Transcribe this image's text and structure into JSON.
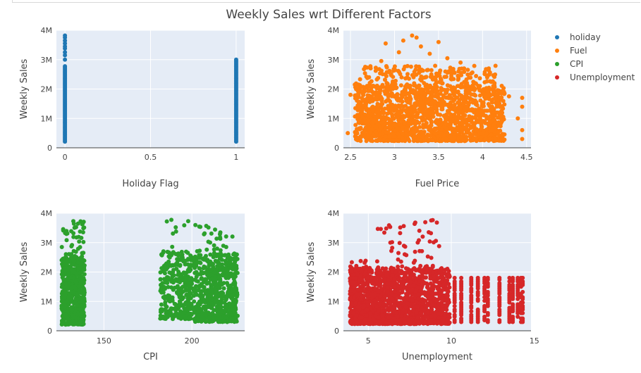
{
  "title": "Weekly Sales wrt Different Factors",
  "colors": {
    "holiday": "#1f77b4",
    "Fuel": "#ff7f0e",
    "CPI": "#2ca02c",
    "Unemployment": "#d62728",
    "plot_bg": "#e5ecf6",
    "grid": "#ffffff",
    "text": "#444444"
  },
  "legend": [
    {
      "name": "holiday",
      "color": "#1f77b4"
    },
    {
      "name": "Fuel",
      "color": "#ff7f0e"
    },
    {
      "name": "CPI",
      "color": "#2ca02c"
    },
    {
      "name": "Unemployment",
      "color": "#d62728"
    }
  ],
  "chart_data": [
    {
      "type": "scatter",
      "series_name": "holiday",
      "title": "",
      "xlabel": "Holiday Flag",
      "ylabel": "Weekly Sales",
      "xlim": [
        -0.05,
        1.05
      ],
      "ylim": [
        0,
        4000000
      ],
      "xticks": [
        0,
        0.5,
        1
      ],
      "xtick_labels": [
        "0",
        "0.5",
        "1"
      ],
      "yticks": [
        0,
        1000000,
        2000000,
        3000000,
        4000000
      ],
      "ytick_labels": [
        "0",
        "1M",
        "2M",
        "3M",
        "4M"
      ],
      "y_range_data": [
        210000,
        3820000
      ],
      "groups": [
        {
          "x": 0,
          "y_min": 210000,
          "y_max": 2800000,
          "outliers": [
            3000000,
            3150000,
            3250000,
            3380000,
            3450000,
            3550000,
            3650000,
            3750000,
            3820000
          ]
        },
        {
          "x": 1,
          "y_min": 210000,
          "y_max": 3000000,
          "outliers": []
        }
      ]
    },
    {
      "type": "scatter",
      "series_name": "Fuel",
      "title": "",
      "xlabel": "Fuel Price",
      "ylabel": "Weekly Sales",
      "xlim": [
        2.42,
        4.55
      ],
      "ylim": [
        0,
        4000000
      ],
      "xticks": [
        2.5,
        3,
        3.5,
        4,
        4.5
      ],
      "xtick_labels": [
        "2.5",
        "3",
        "3.5",
        "4",
        "4.5"
      ],
      "yticks": [
        0,
        1000000,
        2000000,
        3000000,
        4000000
      ],
      "ytick_labels": [
        "0",
        "1M",
        "2M",
        "3M",
        "4M"
      ],
      "x_range_data": [
        2.47,
        4.47
      ],
      "y_range_data": [
        210000,
        3820000
      ],
      "outliers": [
        [
          3.2,
          3820000
        ],
        [
          3.25,
          3750000
        ],
        [
          3.1,
          3650000
        ],
        [
          2.9,
          3550000
        ],
        [
          3.5,
          3600000
        ],
        [
          3.3,
          3450000
        ],
        [
          3.05,
          3250000
        ],
        [
          3.4,
          3200000
        ],
        [
          2.85,
          2950000
        ],
        [
          3.6,
          3050000
        ],
        [
          3.75,
          2900000
        ],
        [
          4.3,
          1750000
        ],
        [
          4.45,
          1700000
        ],
        [
          4.45,
          1400000
        ],
        [
          4.4,
          1000000
        ],
        [
          4.45,
          600000
        ],
        [
          4.45,
          300000
        ],
        [
          2.55,
          2150000
        ],
        [
          2.5,
          1800000
        ],
        [
          2.47,
          500000
        ]
      ]
    },
    {
      "type": "scatter",
      "series_name": "CPI",
      "title": "",
      "xlabel": "CPI",
      "ylabel": "Weekly Sales",
      "xlim": [
        123,
        230
      ],
      "ylim": [
        0,
        4000000
      ],
      "xticks": [
        150,
        200
      ],
      "xtick_labels": [
        "150",
        "200"
      ],
      "yticks": [
        0,
        1000000,
        2000000,
        3000000,
        4000000
      ],
      "ytick_labels": [
        "0",
        "1M",
        "2M",
        "3M",
        "4M"
      ],
      "clusters": [
        {
          "x_range": [
            126,
            139
          ],
          "y_range": [
            210000,
            3750000
          ]
        },
        {
          "x_range": [
            182,
            200
          ],
          "y_range": [
            400000,
            3800000
          ]
        },
        {
          "x_range": [
            201,
            226
          ],
          "y_range": [
            300000,
            3650000
          ]
        }
      ]
    },
    {
      "type": "scatter",
      "series_name": "Unemployment",
      "title": "",
      "xlabel": "Unemployment",
      "ylabel": "Weekly Sales",
      "xlim": [
        3.5,
        14.8
      ],
      "ylim": [
        0,
        4000000
      ],
      "xticks": [
        5,
        10,
        15
      ],
      "xtick_labels": [
        "5",
        "10",
        "15"
      ],
      "yticks": [
        0,
        1000000,
        2000000,
        3000000,
        4000000
      ],
      "ytick_labels": [
        "0",
        "1M",
        "2M",
        "3M",
        "4M"
      ],
      "x_range_data": [
        3.9,
        14.3
      ],
      "y_range_data": [
        210000,
        3820000
      ],
      "column_values": [
        10.2,
        10.6,
        11.2,
        11.6,
        12.0,
        12.2,
        12.9,
        13.5,
        13.7,
        14.0,
        14.2,
        14.3
      ]
    }
  ]
}
